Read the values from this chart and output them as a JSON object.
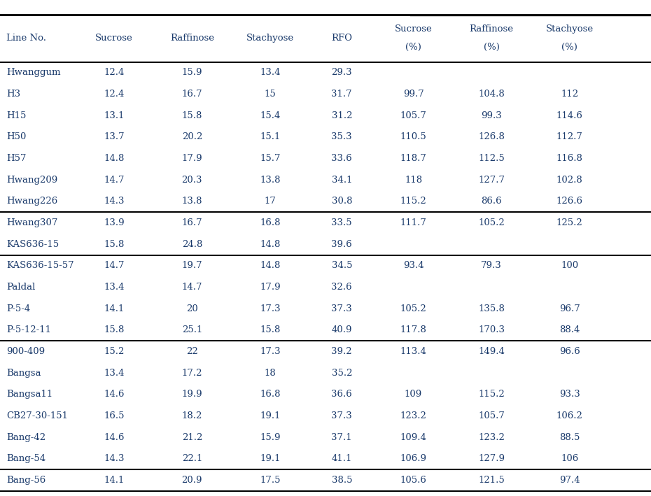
{
  "columns": [
    "Line No.",
    "Sucrose",
    "Raffinose",
    "Stachyose",
    "RFO",
    "Sucrose\n(%)",
    "Raffinose\n(%)",
    "Stachyose\n(%)"
  ],
  "col_labels_line1": [
    "Line No.",
    "Sucrose",
    "Raffinose",
    "Stachyose",
    "RFO",
    "Sucrose",
    "Raffinose",
    "Stachyose"
  ],
  "col_labels_line2": [
    "",
    "",
    "",
    "",
    "",
    "(%)",
    "(%)",
    "(%)"
  ],
  "rows": [
    [
      "Hwanggum",
      "12.4",
      "15.9",
      "13.4",
      "29.3",
      "",
      "",
      ""
    ],
    [
      "H3",
      "12.4",
      "16.7",
      "15",
      "31.7",
      "99.7",
      "104.8",
      "112"
    ],
    [
      "H15",
      "13.1",
      "15.8",
      "15.4",
      "31.2",
      "105.7",
      "99.3",
      "114.6"
    ],
    [
      "H50",
      "13.7",
      "20.2",
      "15.1",
      "35.3",
      "110.5",
      "126.8",
      "112.7"
    ],
    [
      "H57",
      "14.8",
      "17.9",
      "15.7",
      "33.6",
      "118.7",
      "112.5",
      "116.8"
    ],
    [
      "Hwang209",
      "14.7",
      "20.3",
      "13.8",
      "34.1",
      "118",
      "127.7",
      "102.8"
    ],
    [
      "Hwang226",
      "14.3",
      "13.8",
      "17",
      "30.8",
      "115.2",
      "86.6",
      "126.6"
    ],
    [
      "Hwang307",
      "13.9",
      "16.7",
      "16.8",
      "33.5",
      "111.7",
      "105.2",
      "125.2"
    ],
    [
      "KAS636-15",
      "15.8",
      "24.8",
      "14.8",
      "39.6",
      "",
      "",
      ""
    ],
    [
      "KAS636-15-57",
      "14.7",
      "19.7",
      "14.8",
      "34.5",
      "93.4",
      "79.3",
      "100"
    ],
    [
      "Paldal",
      "13.4",
      "14.7",
      "17.9",
      "32.6",
      "",
      "",
      ""
    ],
    [
      "P-5-4",
      "14.1",
      "20",
      "17.3",
      "37.3",
      "105.2",
      "135.8",
      "96.7"
    ],
    [
      "P-5-12-11",
      "15.8",
      "25.1",
      "15.8",
      "40.9",
      "117.8",
      "170.3",
      "88.4"
    ],
    [
      "900-409",
      "15.2",
      "22",
      "17.3",
      "39.2",
      "113.4",
      "149.4",
      "96.6"
    ],
    [
      "Bangsa",
      "13.4",
      "17.2",
      "18",
      "35.2",
      "",
      "",
      ""
    ],
    [
      "Bangsa11",
      "14.6",
      "19.9",
      "16.8",
      "36.6",
      "109",
      "115.2",
      "93.3"
    ],
    [
      "CB27-30-151",
      "16.5",
      "18.2",
      "19.1",
      "37.3",
      "123.2",
      "105.7",
      "106.2"
    ],
    [
      "Bang-42",
      "14.6",
      "21.2",
      "15.9",
      "37.1",
      "109.4",
      "123.2",
      "88.5"
    ],
    [
      "Bang-54",
      "14.3",
      "22.1",
      "19.1",
      "41.1",
      "106.9",
      "127.9",
      "106"
    ],
    [
      "Bang-56",
      "14.1",
      "20.9",
      "17.5",
      "38.5",
      "105.6",
      "121.5",
      "97.4"
    ]
  ],
  "group_separators_after": [
    7,
    9,
    13,
    19
  ],
  "reference_rows": [
    0,
    8,
    10,
    14
  ],
  "text_color": "#1a3a6b",
  "bg_color": "#ffffff",
  "line_color": "#000000"
}
